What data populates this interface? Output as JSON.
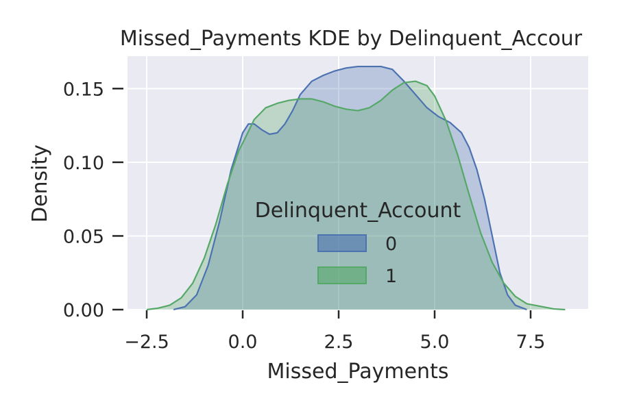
{
  "chart_data": {
    "type": "area",
    "title": "Missed_Payments KDE by Delinquent_Accour",
    "xlabel": "Missed_Payments",
    "ylabel": "Density",
    "xlim": [
      -3.0,
      9.0
    ],
    "ylim": [
      0.0,
      0.172
    ],
    "xticks": [
      -2.5,
      0.0,
      2.5,
      5.0,
      7.5
    ],
    "xtick_labels": [
      "−2.5",
      "0.0",
      "2.5",
      "5.0",
      "7.5"
    ],
    "yticks": [
      0.0,
      0.05,
      0.1,
      0.15
    ],
    "ytick_labels": [
      "0.00",
      "0.05",
      "0.10",
      "0.15"
    ],
    "grid": true,
    "legend": {
      "title": "Delinquent_Account",
      "placement": "center"
    },
    "series": [
      {
        "name": "0",
        "color": "#4C72B0",
        "x": [
          -1.8,
          -1.5,
          -1.2,
          -0.9,
          -0.6,
          -0.3,
          0.0,
          0.15,
          0.3,
          0.5,
          0.7,
          0.9,
          1.1,
          1.3,
          1.5,
          1.8,
          2.1,
          2.4,
          2.7,
          3.0,
          3.3,
          3.6,
          3.9,
          4.2,
          4.5,
          4.8,
          5.1,
          5.4,
          5.7,
          5.9,
          6.1,
          6.3,
          6.5,
          6.7,
          6.9,
          7.1,
          7.4
        ],
        "y": [
          0.0,
          0.002,
          0.01,
          0.03,
          0.06,
          0.095,
          0.12,
          0.126,
          0.126,
          0.122,
          0.119,
          0.12,
          0.126,
          0.135,
          0.146,
          0.155,
          0.159,
          0.162,
          0.164,
          0.165,
          0.165,
          0.165,
          0.163,
          0.155,
          0.146,
          0.137,
          0.131,
          0.127,
          0.12,
          0.11,
          0.095,
          0.075,
          0.05,
          0.025,
          0.01,
          0.003,
          0.0
        ]
      },
      {
        "name": "1",
        "color": "#55A868",
        "x": [
          -2.5,
          -2.2,
          -1.9,
          -1.6,
          -1.3,
          -1.0,
          -0.7,
          -0.4,
          -0.1,
          0.0,
          0.3,
          0.6,
          0.9,
          1.2,
          1.5,
          1.8,
          2.1,
          2.4,
          2.7,
          3.0,
          3.3,
          3.6,
          3.9,
          4.2,
          4.5,
          4.8,
          5.0,
          5.3,
          5.6,
          5.9,
          6.2,
          6.5,
          6.8,
          7.1,
          7.4,
          7.8,
          8.1,
          8.4
        ],
        "y": [
          0.0,
          0.001,
          0.003,
          0.008,
          0.018,
          0.035,
          0.058,
          0.085,
          0.108,
          0.113,
          0.129,
          0.137,
          0.14,
          0.142,
          0.143,
          0.143,
          0.141,
          0.138,
          0.136,
          0.135,
          0.137,
          0.142,
          0.149,
          0.154,
          0.155,
          0.152,
          0.145,
          0.128,
          0.105,
          0.078,
          0.052,
          0.032,
          0.018,
          0.009,
          0.004,
          0.002,
          0.0005,
          0.0
        ]
      }
    ]
  }
}
